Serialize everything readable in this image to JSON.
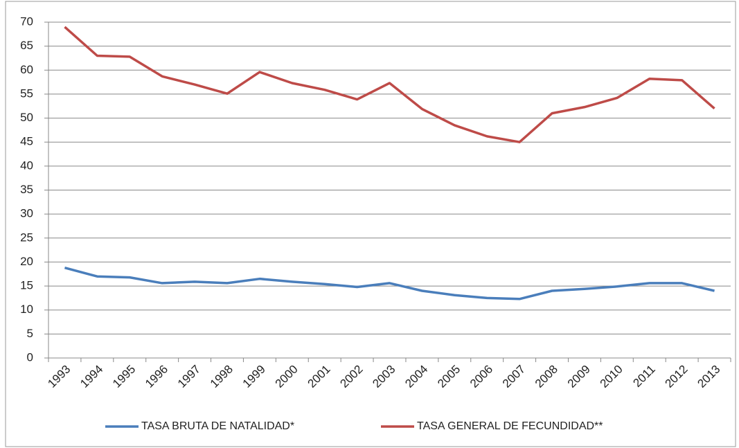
{
  "chart_data": {
    "type": "line",
    "categories": [
      "1993",
      "1994",
      "1995",
      "1996",
      "1997",
      "1998",
      "1999",
      "2000",
      "2001",
      "2002",
      "2003",
      "2004",
      "2005",
      "2006",
      "2007",
      "2008",
      "2009",
      "2010",
      "2011",
      "2012",
      "2013"
    ],
    "series": [
      {
        "name": "TASA BRUTA DE NATALIDAD*",
        "color": "#4a7ebb",
        "values": [
          18.8,
          17,
          16.8,
          15.6,
          15.9,
          15.6,
          16.5,
          15.9,
          15.4,
          14.8,
          15.6,
          14,
          13.1,
          12.5,
          12.3,
          14,
          14.4,
          14.9,
          15.6,
          15.6,
          14
        ]
      },
      {
        "name": "TASA GENERAL DE FECUNDIDAD**",
        "color": "#be4b48",
        "values": [
          69,
          63,
          62.8,
          58.7,
          57,
          55.1,
          59.6,
          57.3,
          55.9,
          53.9,
          57.3,
          51.9,
          48.5,
          46.2,
          45,
          51,
          52.3,
          54.2,
          58.2,
          57.9,
          52
        ]
      }
    ],
    "ylim": [
      0,
      70
    ],
    "yticks": [
      0,
      5,
      10,
      15,
      20,
      25,
      30,
      35,
      40,
      45,
      50,
      55,
      60,
      65,
      70
    ],
    "grid": true,
    "legend": "bottom"
  }
}
